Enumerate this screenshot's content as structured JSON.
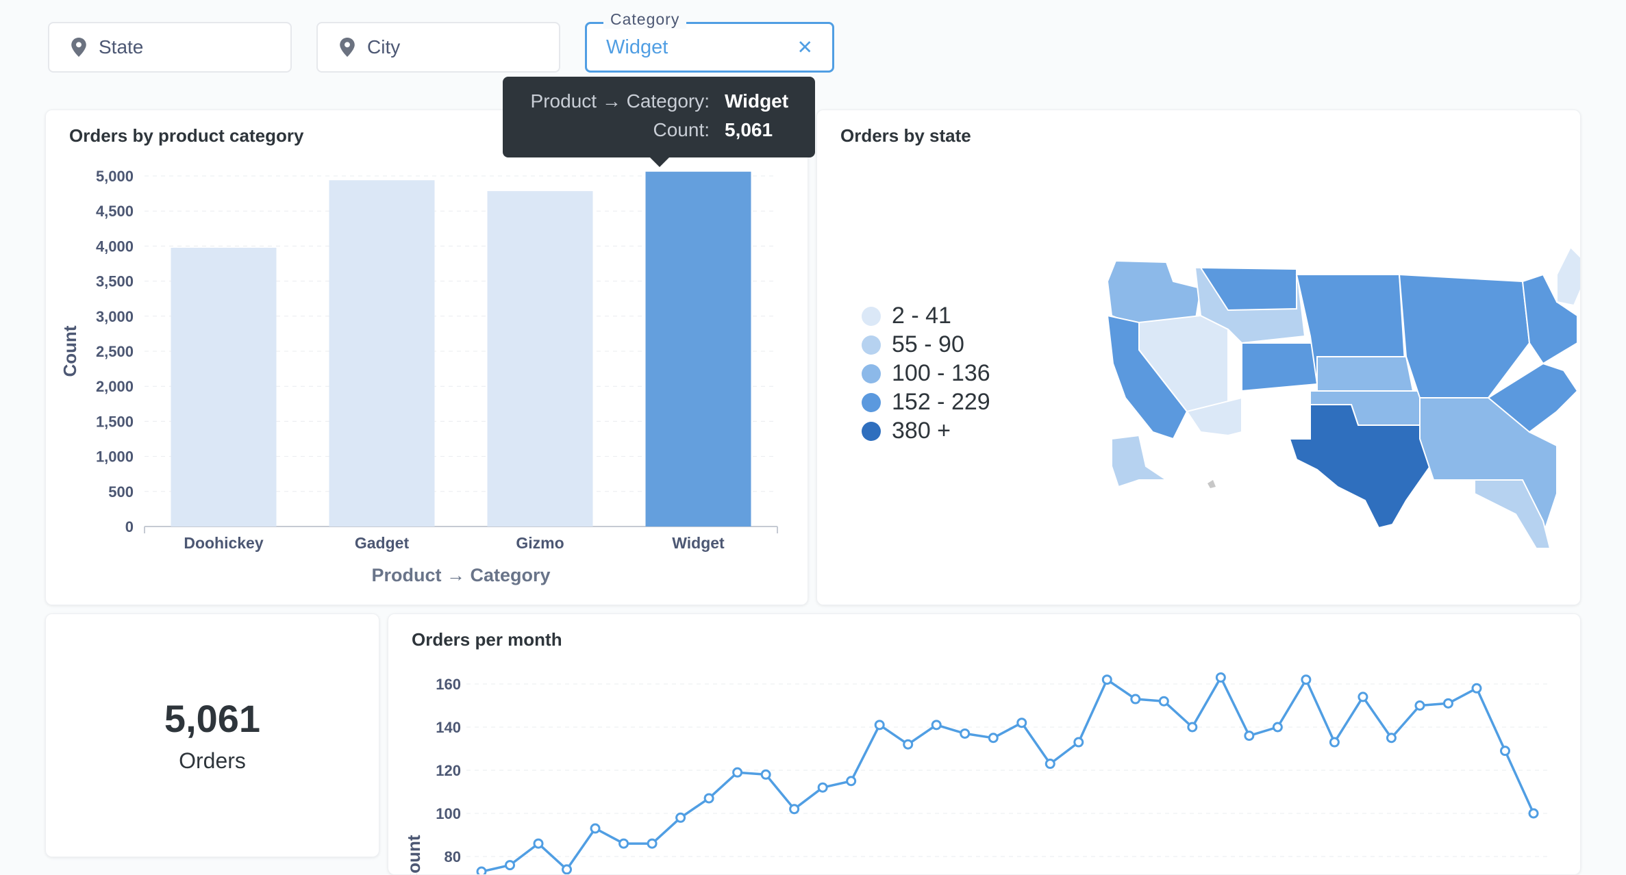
{
  "filters": {
    "state": {
      "label": "State"
    },
    "city": {
      "label": "City"
    },
    "category": {
      "legend": "Category",
      "value": "Widget"
    }
  },
  "tooltip": {
    "rows": [
      {
        "key": "Product → Category:",
        "value": "Widget"
      },
      {
        "key": "Count:",
        "value": "5,061"
      }
    ]
  },
  "cards": {
    "bar_title": "Orders by product category",
    "map_title": "Orders by state",
    "scalar": {
      "value": "5,061",
      "label": "Orders"
    },
    "line_title": "Orders per month"
  },
  "map_legend": [
    {
      "label": "2 - 41",
      "color": "#dbe8f7"
    },
    {
      "label": "55 - 90",
      "color": "#b6d2f0"
    },
    {
      "label": "100 - 136",
      "color": "#8cb9e9"
    },
    {
      "label": "152 - 229",
      "color": "#5b99de"
    },
    {
      "label": "380 +",
      "color": "#2f6fbe"
    }
  ],
  "colors": {
    "accent": "#509ee3",
    "bar_light": "#dbe7f6",
    "bar_selected": "#649fdd"
  },
  "chart_data": [
    {
      "type": "bar",
      "title": "Orders by product category",
      "categories": [
        "Doohickey",
        "Gadget",
        "Gizmo",
        "Widget"
      ],
      "values": [
        3976,
        4939,
        4784,
        5061
      ],
      "selected": "Widget",
      "xlabel": "Product → Category",
      "ylabel": "Count",
      "ylim": [
        0,
        5000
      ],
      "yticks": [
        "0",
        "500",
        "1,000",
        "1,500",
        "2,000",
        "2,500",
        "3,000",
        "3,500",
        "4,000",
        "4,500",
        "5,000"
      ],
      "grid": true
    },
    {
      "type": "line",
      "title": "Orders per month",
      "ylabel": "Count",
      "yticks": [
        "80",
        "100",
        "120",
        "140",
        "160"
      ],
      "ylim": [
        70,
        166
      ],
      "values": [
        73,
        76,
        86,
        74,
        93,
        86,
        86,
        98,
        107,
        119,
        118,
        102,
        112,
        115,
        141,
        132,
        141,
        137,
        135,
        142,
        123,
        133,
        162,
        153,
        152,
        140,
        163,
        136,
        140,
        162,
        133,
        154,
        135,
        150,
        151,
        158,
        129,
        100
      ],
      "grid": true
    }
  ]
}
